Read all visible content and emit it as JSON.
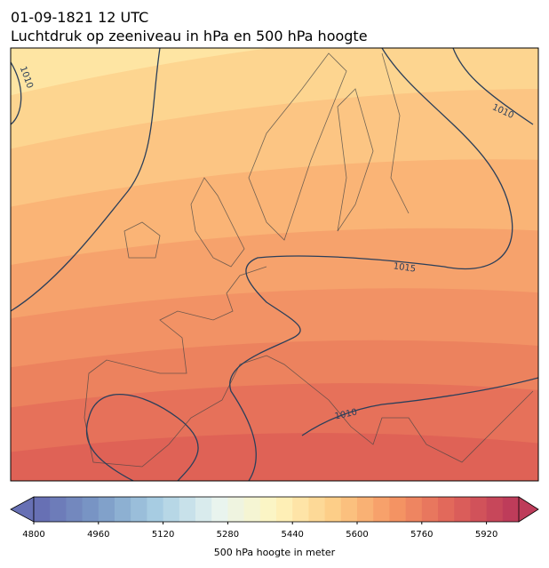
{
  "header": {
    "title_line1": "01-09-1821 12 UTC",
    "title_line2": "Luchtdruk op zeeniveau in hPa en 500 hPa hoogte"
  },
  "map": {
    "contour_labels": [
      "1010",
      "1010",
      "1015",
      "1010"
    ]
  },
  "colorbar": {
    "ticks": [
      "4800",
      "4960",
      "5120",
      "5280",
      "5440",
      "5600",
      "5760",
      "5920"
    ],
    "label": "500 hPa hoogte in meter"
  }
}
